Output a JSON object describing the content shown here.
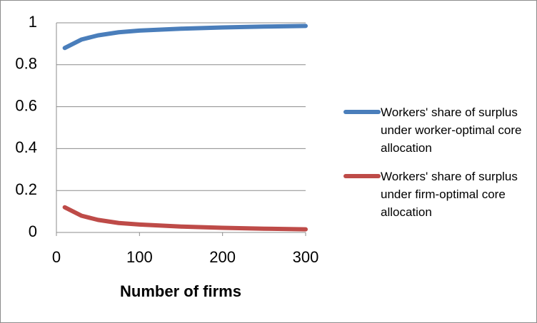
{
  "chart_data": {
    "type": "line",
    "x_label": "Number of firms",
    "x": [
      10,
      20,
      30,
      40,
      50,
      75,
      100,
      150,
      200,
      250,
      300
    ],
    "series": [
      {
        "name": "Workers' share of surplus under worker-optimal core allocation",
        "color": "#4a7ebb",
        "values": [
          0.88,
          0.9,
          0.92,
          0.93,
          0.94,
          0.955,
          0.963,
          0.972,
          0.978,
          0.982,
          0.985
        ]
      },
      {
        "name": "Workers' share of surplus under firm-optimal core allocation",
        "color": "#be4b48",
        "values": [
          0.12,
          0.1,
          0.08,
          0.07,
          0.06,
          0.045,
          0.038,
          0.028,
          0.022,
          0.018,
          0.015
        ]
      }
    ],
    "xlim": [
      0,
      300
    ],
    "xticks": [
      0,
      100,
      200,
      300
    ],
    "ylim": [
      0,
      1
    ],
    "yticks": [
      0,
      0.2,
      0.4,
      0.6,
      0.8,
      1
    ],
    "grid": true,
    "legend": "right"
  }
}
